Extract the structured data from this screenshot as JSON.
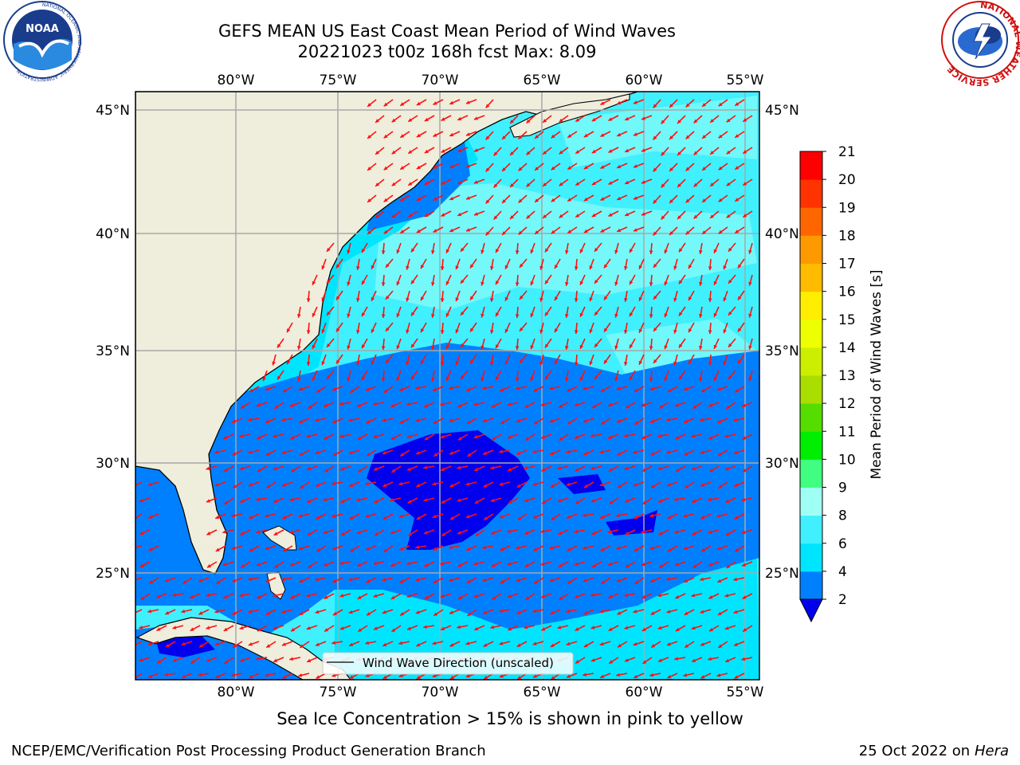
{
  "title_line1": "GEFS MEAN US East Coast Mean Period of Wind Waves",
  "title_line2": "20221023 t00z 168h fcst   Max: 8.09",
  "footer_note": "Sea Ice Concentration > 15% is shown in pink to yellow",
  "footer_left": "NCEP/EMC/Verification Post Processing Product Generation Branch",
  "footer_right_date": "25 Oct 2022 on",
  "footer_right_host": "Hera",
  "legend_label": "Wind Wave Direction (unscaled)",
  "colorbar": {
    "label": "Mean Period of Wind Waves [s]",
    "ticks": [
      "2",
      "4",
      "6",
      "8",
      "9",
      "10",
      "11",
      "12",
      "13",
      "14",
      "15",
      "16",
      "17",
      "18",
      "19",
      "20",
      "21"
    ],
    "colors": [
      "#0000ee",
      "#0080ff",
      "#00e5ff",
      "#40f0ff",
      "#a0fff5",
      "#40ff80",
      "#00ee00",
      "#55dd00",
      "#aadd00",
      "#ccee00",
      "#eeff00",
      "#ffee00",
      "#ffbb00",
      "#ff9900",
      "#ff6600",
      "#ff3300",
      "#ff0000"
    ]
  },
  "map": {
    "lon_labels": [
      "80°W",
      "75°W",
      "70°W",
      "65°W",
      "60°W",
      "55°W"
    ],
    "lat_labels": [
      "45°N",
      "40°N",
      "35°N",
      "30°N",
      "25°N"
    ],
    "land_color": "#efeddc",
    "arrow_color": "#ff1010"
  },
  "logos": {
    "noaa_text": "NOAA",
    "noaa_ring_text": "NATIONAL OCEANIC AND ATMOSPHERIC ADMINISTRATION",
    "nws_ring_text": "NATIONAL WEATHER SERVICE"
  }
}
